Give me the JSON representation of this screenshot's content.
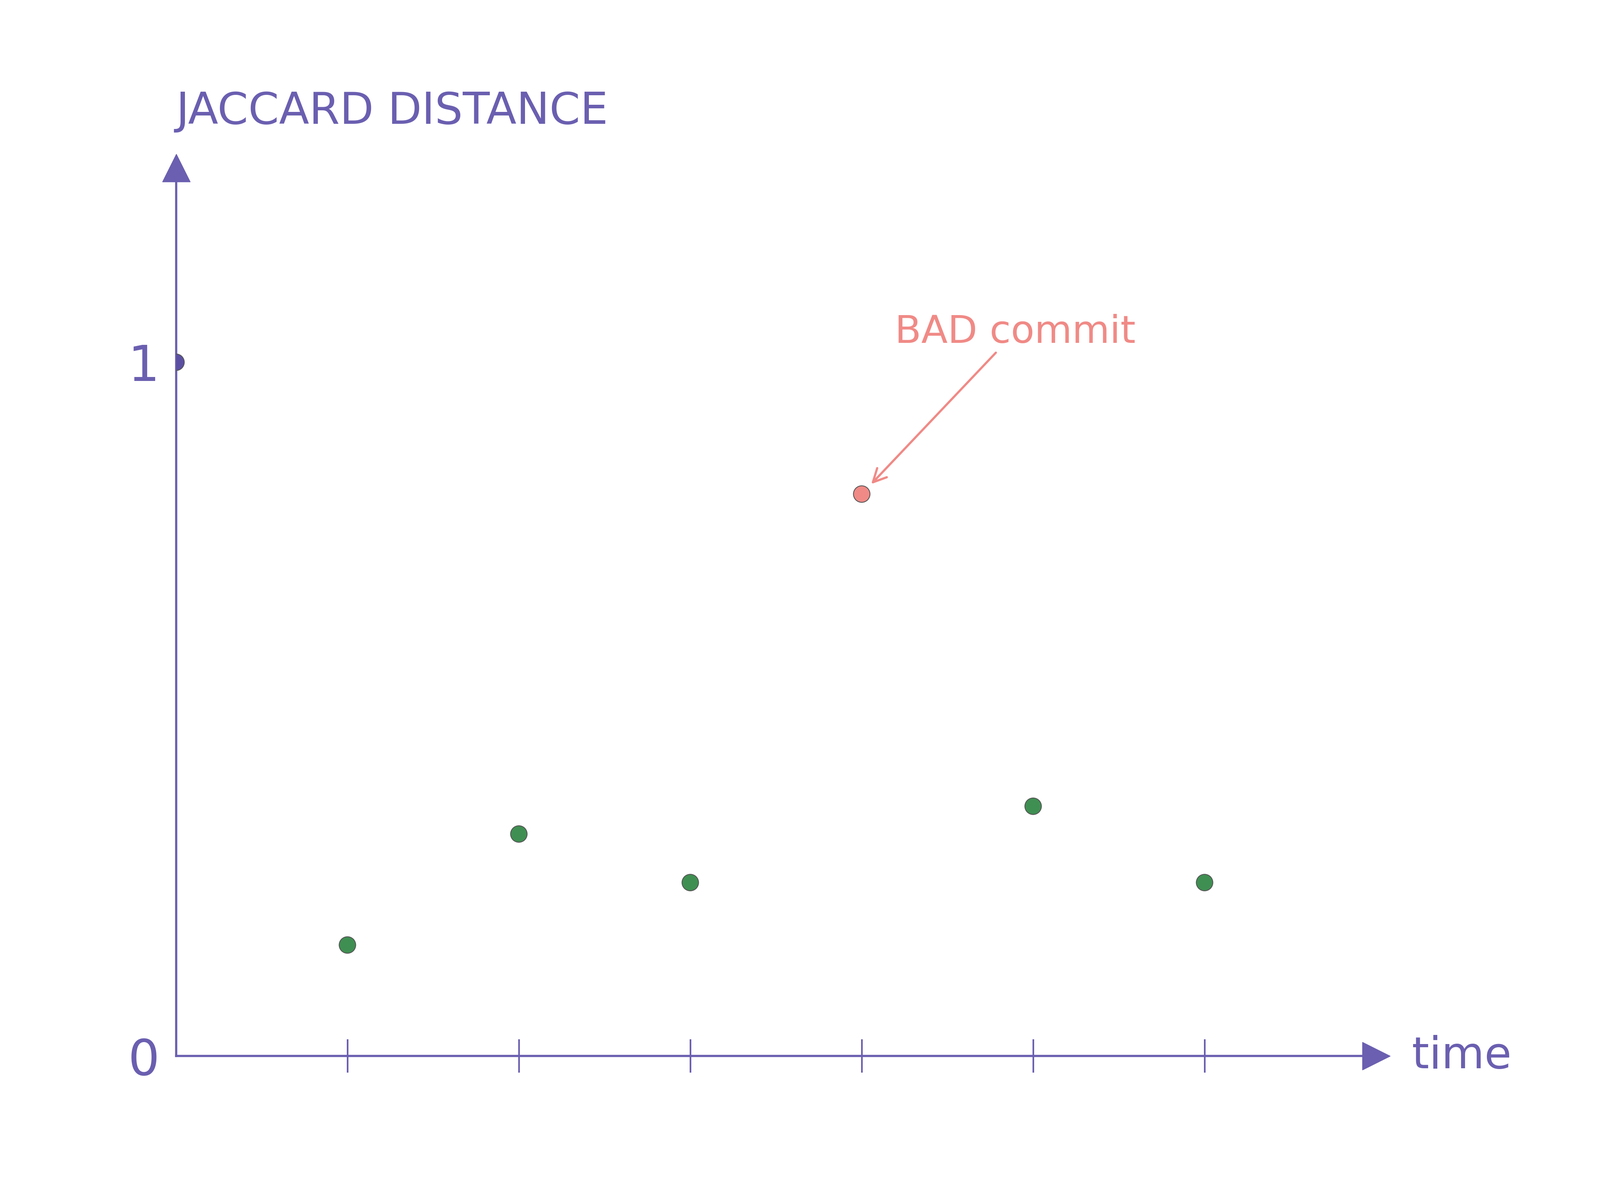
{
  "chart_data": {
    "type": "scatter",
    "title": "JACCARD DISTANCE",
    "x_label": "time",
    "x": [
      0,
      1,
      2,
      3,
      4,
      5,
      6
    ],
    "values": [
      1,
      0.16,
      0.32,
      0.25,
      0.81,
      0.36,
      0.25
    ],
    "colors": [
      "#5b4fa3",
      "#3f8f52",
      "#3f8f52",
      "#3f8f52",
      "#f08a86",
      "#3f8f52",
      "#3f8f52"
    ],
    "xlim": [
      0,
      7
    ],
    "xticks": [
      1,
      2,
      3,
      4,
      5,
      6
    ],
    "ylim": [
      0,
      1.28
    ],
    "yticks": [
      0,
      1
    ],
    "tick_labels": "y",
    "grid": false,
    "annotations": [
      {
        "text": "BAD commit",
        "x": 4,
        "y": 0.81,
        "color": "#f08a86"
      }
    ]
  }
}
